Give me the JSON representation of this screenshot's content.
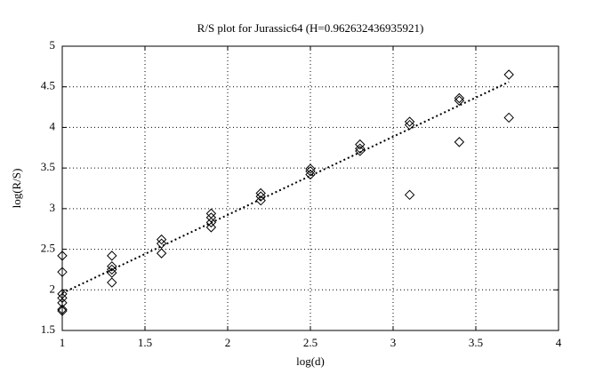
{
  "chart_data": {
    "type": "scatter",
    "title": "R/S plot for Jurassic64 (H=0.962632436935921)",
    "x_label": "log(d)",
    "y_label": "log(R/S)",
    "xlim": [
      1,
      4
    ],
    "xticks": [
      1,
      1.5,
      2,
      2.5,
      3,
      3.5,
      4
    ],
    "ylim": [
      1.5,
      5
    ],
    "yticks": [
      1.5,
      2,
      2.5,
      3,
      3.5,
      4,
      4.5,
      5
    ],
    "grid": true,
    "series": [
      {
        "type": "scatter",
        "marker": "diamond",
        "color": "#000000",
        "x": [
          1,
          1,
          1,
          1,
          1,
          1,
          1,
          1.3,
          1.3,
          1.3,
          1.3,
          1.3,
          1.6,
          1.6,
          1.6,
          1.9,
          1.9,
          1.9,
          1.9,
          2.2,
          2.2,
          2.2,
          2.5,
          2.5,
          2.5,
          2.8,
          2.8,
          2.8,
          3.1,
          3.1,
          3.1,
          3.4,
          3.4,
          3.4,
          3.7,
          3.7
        ],
        "values": [
          2.42,
          2.22,
          1.95,
          1.9,
          1.84,
          1.76,
          1.74,
          2.42,
          2.29,
          2.25,
          2.21,
          2.09,
          2.62,
          2.57,
          2.45,
          2.94,
          2.89,
          2.83,
          2.77,
          3.19,
          3.15,
          3.1,
          3.49,
          3.46,
          3.42,
          3.79,
          3.74,
          3.71,
          4.07,
          4.03,
          3.17,
          4.36,
          4.33,
          3.82,
          4.65,
          4.12
        ]
      },
      {
        "type": "line",
        "style": "dotted",
        "color": "#000000",
        "x": [
          1,
          3.7
        ],
        "values": [
          1.96,
          4.56
        ]
      }
    ]
  }
}
